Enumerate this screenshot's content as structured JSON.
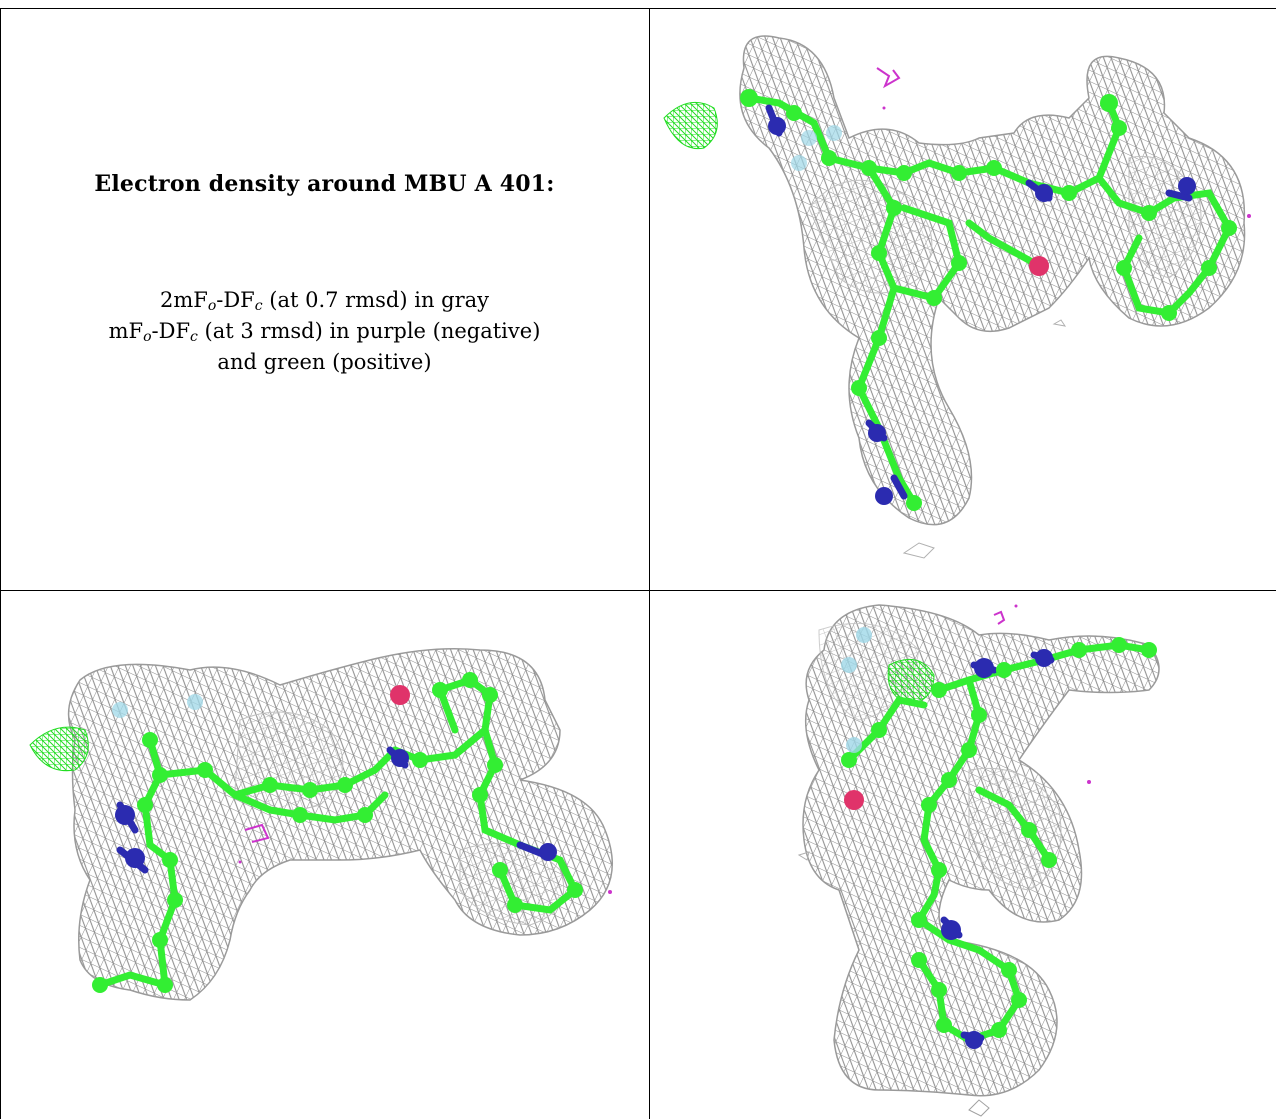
{
  "title": "Electron density around MBU A 401:",
  "legend": [
    {
      "before": "2mF",
      "sub1": "o",
      "mid": "-DF",
      "sub2": "c",
      "after": " (at 0.7 rmsd) in gray"
    },
    {
      "before": "mF",
      "sub1": "o",
      "mid": "-DF",
      "sub2": "c",
      "after": " (at 3 rmsd) in purple (negative)"
    },
    {
      "before": "",
      "sub1": "",
      "mid": "",
      "sub2": "",
      "after": "and green (positive)"
    }
  ],
  "colors": {
    "mesh_gray": "#9a9a9a",
    "carbon_green": "#33ee33",
    "nitrogen_blue": "#2b2bb0",
    "oxygen_red": "#e0336a",
    "fluorine_cyan": "#9fd8e8",
    "negative_purple": "#cc33cc",
    "positive_green": "#22dd22"
  },
  "panels": [
    {
      "id": "view-1",
      "icon": "density-map-view-1"
    },
    {
      "id": "view-2",
      "icon": "density-map-view-2"
    },
    {
      "id": "view-3",
      "icon": "density-map-view-3"
    }
  ]
}
